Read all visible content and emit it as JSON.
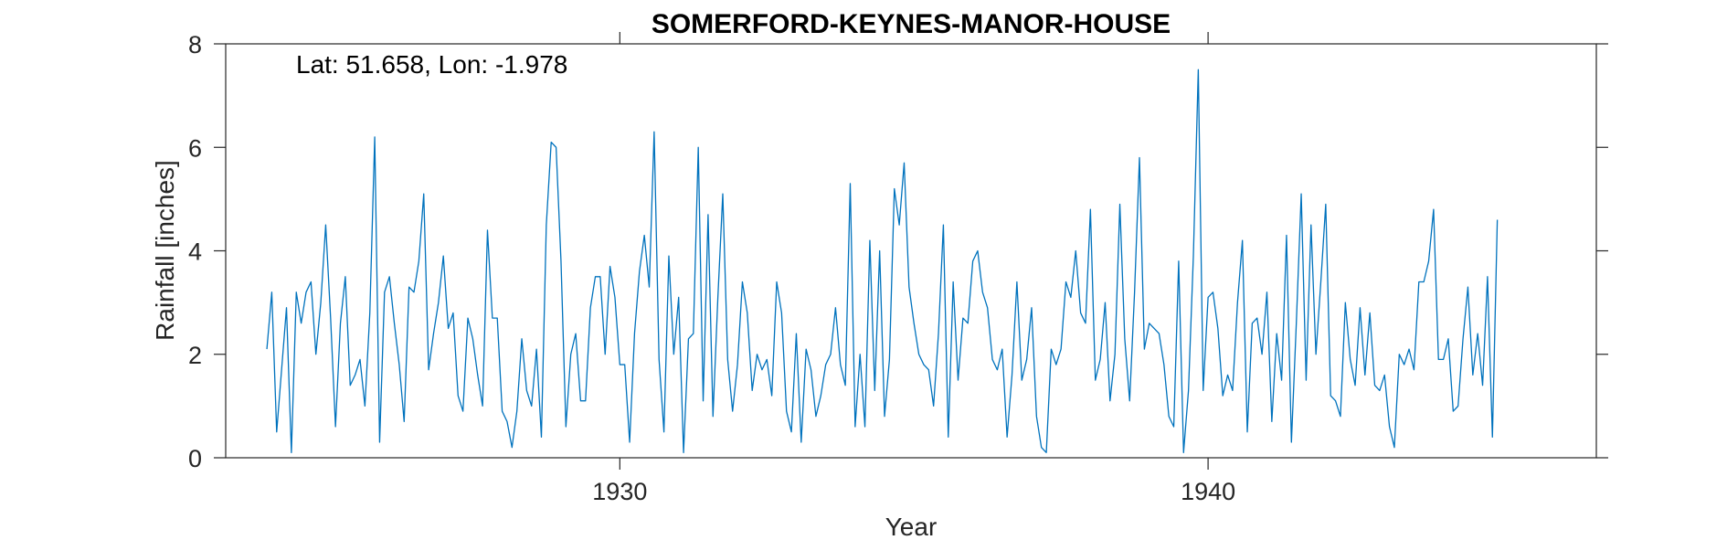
{
  "chart_data": {
    "type": "line",
    "title": "SOMERFORD-KEYNES-MANOR-HOUSE",
    "annotation": "Lat: 51.658, Lon: -1.978",
    "xlabel": "Year",
    "ylabel": "Rainfall [inches]",
    "xlim": [
      1923.3,
      1946.6
    ],
    "ylim": [
      0,
      8
    ],
    "xticks": [
      1930,
      1940
    ],
    "xtick_labels": [
      "1930",
      "1940"
    ],
    "yticks": [
      0,
      2,
      4,
      6,
      8
    ],
    "ytick_labels": [
      "0",
      "2",
      "4",
      "6",
      "8"
    ],
    "grid": false,
    "line_color": "#0072BD",
    "x_start": 1924.0,
    "x_step_months": 1,
    "series": [
      {
        "values": [
          2.1,
          3.2,
          0.5,
          1.7,
          2.9,
          0.1,
          3.2,
          2.6,
          3.2,
          3.4,
          2.0,
          3.0,
          4.5,
          2.7,
          0.6,
          2.6,
          3.5,
          1.4,
          1.6,
          1.9,
          1.0,
          2.8,
          6.2,
          0.3,
          3.2,
          3.5,
          2.6,
          1.8,
          0.7,
          3.3,
          3.2,
          3.8,
          5.1,
          1.7,
          2.4,
          3.0,
          3.9,
          2.5,
          2.8,
          1.2,
          0.9,
          2.7,
          2.3,
          1.6,
          1.0,
          4.4,
          2.7,
          2.7,
          0.9,
          0.7,
          0.2,
          0.9,
          2.3,
          1.3,
          1.0,
          2.1,
          0.4,
          4.5,
          6.1,
          6.0,
          3.8,
          0.6,
          2.0,
          2.4,
          1.1,
          1.1,
          2.9,
          3.5,
          3.5,
          2.0,
          3.7,
          3.1,
          1.8,
          1.8,
          0.3,
          2.4,
          3.6,
          4.3,
          3.3,
          6.3,
          1.9,
          0.5,
          3.9,
          2.0,
          3.1,
          0.1,
          2.3,
          2.4,
          6.0,
          1.1,
          4.7,
          0.8,
          3.1,
          5.1,
          1.9,
          0.9,
          1.8,
          3.4,
          2.8,
          1.3,
          2.0,
          1.7,
          1.9,
          1.2,
          3.4,
          2.8,
          0.9,
          0.5,
          2.4,
          0.3,
          2.1,
          1.7,
          0.8,
          1.2,
          1.8,
          2.0,
          2.9,
          1.8,
          1.4,
          5.3,
          0.6,
          2.0,
          0.6,
          4.2,
          1.3,
          4.0,
          0.8,
          1.9,
          5.2,
          4.5,
          5.7,
          3.3,
          2.6,
          2.0,
          1.8,
          1.7,
          1.0,
          2.4,
          4.5,
          0.4,
          3.4,
          1.5,
          2.7,
          2.6,
          3.8,
          4.0,
          3.2,
          2.9,
          1.9,
          1.7,
          2.1,
          0.4,
          1.6,
          3.4,
          1.5,
          1.9,
          2.9,
          0.8,
          0.2,
          0.1,
          2.1,
          1.8,
          2.1,
          3.4,
          3.1,
          4.0,
          2.8,
          2.6,
          4.8,
          1.5,
          1.9,
          3.0,
          1.1,
          2.0,
          4.9,
          2.3,
          1.1,
          3.2,
          5.8,
          2.1,
          2.6,
          2.5,
          2.4,
          1.8,
          0.8,
          0.6,
          3.8,
          0.1,
          1.3,
          3.9,
          7.5,
          1.3,
          3.1,
          3.2,
          2.5,
          1.2,
          1.6,
          1.3,
          3.0,
          4.2,
          0.5,
          2.6,
          2.7,
          2.0,
          3.2,
          0.7,
          2.4,
          1.5,
          4.3,
          0.3,
          2.6,
          5.1,
          1.5,
          4.5,
          2.0,
          3.4,
          4.9,
          1.2,
          1.1,
          0.8,
          3.0,
          1.9,
          1.4,
          2.9,
          1.6,
          2.8,
          1.4,
          1.3,
          1.6,
          0.6,
          0.2,
          2.0,
          1.8,
          2.1,
          1.7,
          3.4,
          3.4,
          3.8,
          4.8,
          1.9,
          1.9,
          2.3,
          0.9,
          1.0,
          2.3,
          3.3,
          1.6,
          2.4,
          1.4,
          3.5,
          0.4,
          4.6
        ]
      }
    ]
  }
}
